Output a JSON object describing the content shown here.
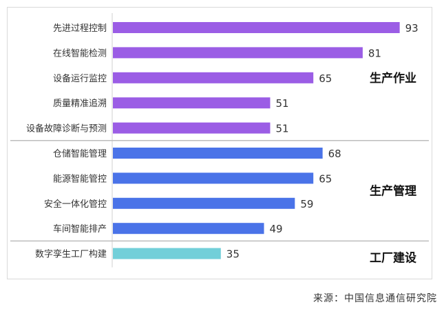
{
  "chart_data": {
    "type": "bar",
    "orientation": "horizontal",
    "categories": [
      "先进过程控制",
      "在线智能检测",
      "设备运行监控",
      "质量精准追溯",
      "设备故障诊断与预测",
      "仓储智能管理",
      "能源智能管控",
      "安全一体化管控",
      "车间智能排产",
      "数字孪生工厂构建"
    ],
    "values": [
      93,
      81,
      65,
      51,
      51,
      68,
      65,
      59,
      49,
      35
    ],
    "groups": [
      {
        "name": "生产作业",
        "start": 0,
        "end": 4,
        "color": "#9b5de5"
      },
      {
        "name": "生产管理",
        "start": 5,
        "end": 8,
        "color": "#4a73e8"
      },
      {
        "name": "工厂建设",
        "start": 9,
        "end": 9,
        "color": "#72cfd9"
      }
    ],
    "xlim": [
      0,
      100
    ],
    "grid": false,
    "legend": "none"
  },
  "source": "来源：中国信息通信研究院"
}
